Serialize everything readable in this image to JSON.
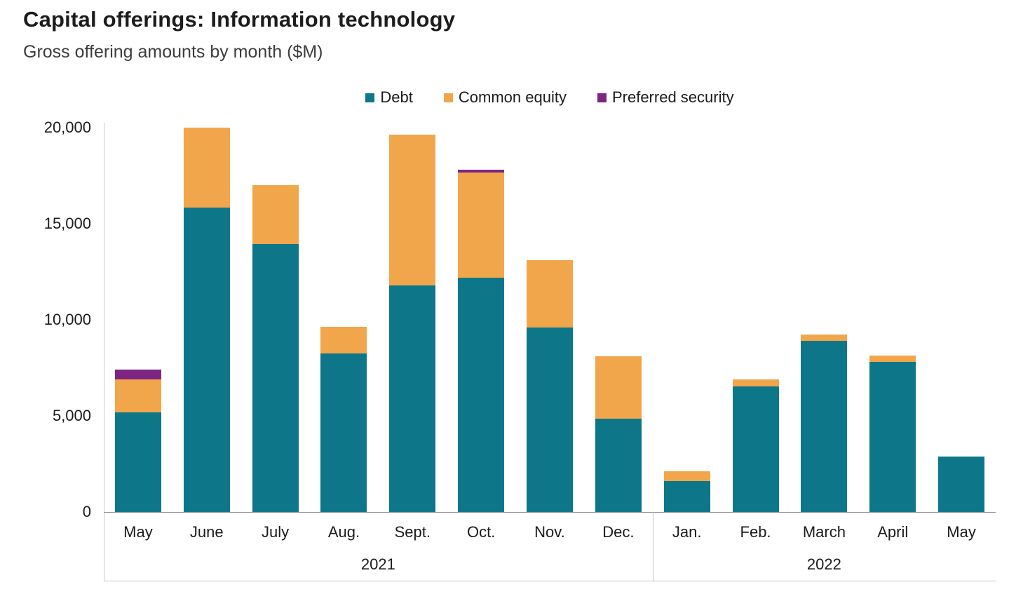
{
  "chart_data": {
    "type": "bar",
    "stacked": true,
    "title": "Capital offerings: Information technology",
    "subtitle": "Gross offering amounts by month ($M)",
    "xlabel": "",
    "ylabel": "",
    "ylim": [
      0,
      20000
    ],
    "yticks": [
      0,
      5000,
      10000,
      15000,
      20000
    ],
    "ytick_labels": [
      "0",
      "5,000",
      "10,000",
      "15,000",
      "20,000"
    ],
    "grid": false,
    "legend_position": "top",
    "categories": [
      "May",
      "June",
      "July",
      "Aug.",
      "Sept.",
      "Oct.",
      "Nov.",
      "Dec.",
      "Jan.",
      "Feb.",
      "March",
      "April",
      "May"
    ],
    "groups": [
      {
        "label": "2021",
        "span": [
          0,
          7
        ]
      },
      {
        "label": "2022",
        "span": [
          8,
          12
        ]
      }
    ],
    "series": [
      {
        "name": "Debt",
        "color": "#0d7789",
        "values": [
          5200,
          15850,
          13950,
          8250,
          11800,
          12200,
          9600,
          4850,
          1600,
          6550,
          8900,
          7800,
          2900
        ]
      },
      {
        "name": "Common equity",
        "color": "#f2a64c",
        "values": [
          1700,
          4150,
          3050,
          1400,
          7850,
          5450,
          3500,
          3250,
          500,
          350,
          350,
          350,
          0
        ]
      },
      {
        "name": "Preferred security",
        "color": "#7d2583",
        "values": [
          500,
          0,
          0,
          0,
          0,
          150,
          0,
          0,
          0,
          0,
          0,
          0,
          0
        ]
      }
    ]
  }
}
